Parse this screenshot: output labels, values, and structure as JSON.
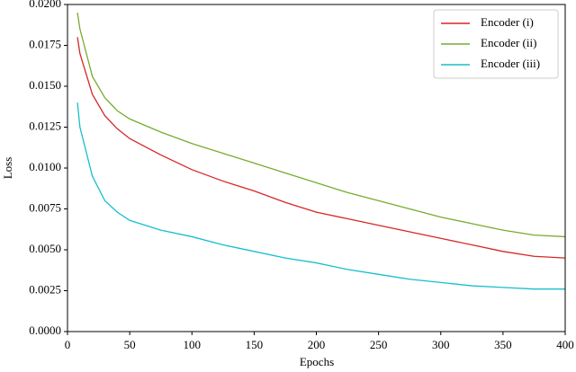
{
  "chart_data": {
    "type": "line",
    "x_label": "Epochs",
    "y_label": "Loss",
    "x": [
      8,
      10,
      20,
      30,
      40,
      50,
      75,
      100,
      125,
      150,
      175,
      200,
      225,
      250,
      275,
      300,
      325,
      350,
      375,
      400
    ],
    "series": [
      {
        "name": "Encoder (i)",
        "color": "#d62728",
        "values": [
          0.018,
          0.017,
          0.0145,
          0.0132,
          0.0124,
          0.0118,
          0.0108,
          0.0099,
          0.0092,
          0.0086,
          0.0079,
          0.0073,
          0.0069,
          0.0065,
          0.0061,
          0.0057,
          0.0053,
          0.0049,
          0.0046,
          0.0045
        ]
      },
      {
        "name": "Encoder (ii)",
        "color": "#77ac30",
        "values": [
          0.0195,
          0.0185,
          0.0156,
          0.0143,
          0.0135,
          0.013,
          0.0122,
          0.0115,
          0.0109,
          0.0103,
          0.0097,
          0.0091,
          0.0085,
          0.008,
          0.0075,
          0.007,
          0.0066,
          0.0062,
          0.0059,
          0.0058
        ]
      },
      {
        "name": "Encoder (iii)",
        "color": "#17becf",
        "values": [
          0.014,
          0.0125,
          0.0095,
          0.008,
          0.0073,
          0.0068,
          0.0062,
          0.0058,
          0.0053,
          0.0049,
          0.0045,
          0.0042,
          0.0038,
          0.0035,
          0.0032,
          0.003,
          0.0028,
          0.0027,
          0.0026,
          0.0026
        ]
      }
    ],
    "xlim": [
      0,
      400
    ],
    "xticks": [
      0,
      50,
      100,
      150,
      200,
      250,
      300,
      350,
      400
    ],
    "ylim": [
      0,
      0.02
    ],
    "yticks": [
      {
        "value": 0,
        "label": "0.0000"
      },
      {
        "value": 0.0025,
        "label": "0.0025"
      },
      {
        "value": 0.005,
        "label": "0.0050"
      },
      {
        "value": 0.0075,
        "label": "0.0075"
      },
      {
        "value": 0.01,
        "label": "0.0100"
      },
      {
        "value": 0.0125,
        "label": "0.0125"
      },
      {
        "value": 0.015,
        "label": "0.0150"
      },
      {
        "value": 0.0175,
        "label": "0.0175"
      },
      {
        "value": 0.02,
        "label": "0.0200"
      }
    ],
    "legend": "upper right",
    "grid": false
  }
}
